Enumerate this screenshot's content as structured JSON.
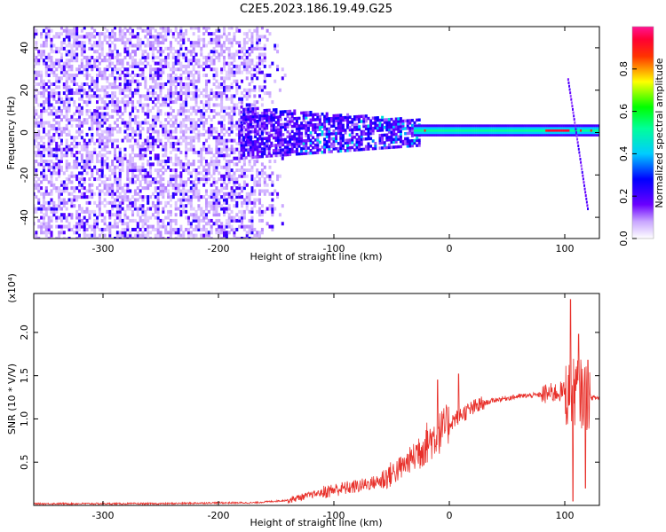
{
  "title": "C2E5.2023.186.19.49.G25",
  "chart_data": [
    {
      "type": "heatmap",
      "title": "C2E5.2023.186.19.49.G25",
      "xlabel": "Height of straight line (km)",
      "ylabel": "Frequency (Hz)",
      "xlim": [
        -360,
        130
      ],
      "ylim": [
        -50,
        50
      ],
      "x_ticks": [
        -300,
        -200,
        -100,
        0,
        100
      ],
      "y_ticks": [
        -40,
        -20,
        0,
        20,
        40
      ],
      "colorbar": {
        "label": "Normalized spectral amplitude",
        "range": [
          0,
          1
        ],
        "ticks": [
          "0.0",
          "0.2",
          "0.4",
          "0.6",
          "0.8"
        ],
        "colormap": "rainbow (white-violet-blue-cyan-green-yellow-red-pink)"
      },
      "regions": [
        {
          "name": "broadband noise",
          "x_range": [
            -360,
            -150
          ],
          "freq_range": [
            -50,
            50
          ],
          "amplitude": 0.1
        },
        {
          "name": "narrowing signal",
          "x_range": [
            -180,
            -30
          ],
          "freq_range": [
            -12,
            12
          ],
          "amplitude": 0.25
        },
        {
          "name": "steady tone",
          "x_range": [
            -30,
            130
          ],
          "center_freq": 0,
          "amplitude": 0.5
        },
        {
          "name": "peak tone",
          "x_range": [
            85,
            105
          ],
          "center_freq": 1,
          "amplitude": 0.95
        },
        {
          "name": "chirp streak",
          "x_range": [
            103,
            120
          ],
          "freq_range": [
            -36,
            25
          ],
          "amplitude": 0.1
        }
      ]
    },
    {
      "type": "line",
      "xlabel": "Height of straight line (km)",
      "ylabel": "SNR (10 * V/V)",
      "y_multiplier": "(x10⁴)",
      "xlim": [
        -360,
        130
      ],
      "ylim": [
        0,
        2.45
      ],
      "x_ticks": [
        -300,
        -200,
        -100,
        0,
        100
      ],
      "y_ticks": [
        "0.5",
        "1.0",
        "1.5",
        "2.0"
      ],
      "series": [
        {
          "color": "#e8302a",
          "x": [
            -360,
            -300,
            -250,
            -200,
            -170,
            -140,
            -120,
            -100,
            -80,
            -60,
            -40,
            -20,
            -10,
            0,
            10,
            20,
            30,
            40,
            60,
            80,
            90,
            100,
            105,
            110,
            115,
            120,
            130
          ],
          "y": [
            0.02,
            0.02,
            0.02,
            0.03,
            0.03,
            0.06,
            0.12,
            0.18,
            0.22,
            0.28,
            0.45,
            0.72,
            0.82,
            0.95,
            1.05,
            1.12,
            1.18,
            1.22,
            1.26,
            1.28,
            1.3,
            1.32,
            1.25,
            1.35,
            1.28,
            1.25,
            1.24
          ],
          "spikes": [
            [
              -10,
              1.45
            ],
            [
              8,
              1.52
            ],
            [
              105,
              2.38
            ],
            [
              107,
              0.05
            ],
            [
              112,
              1.98
            ],
            [
              118,
              0.2
            ],
            [
              120,
              1.68
            ]
          ]
        }
      ]
    }
  ]
}
